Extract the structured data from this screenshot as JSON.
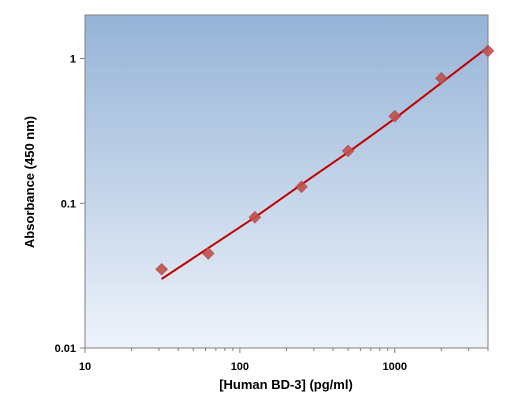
{
  "chart_data": {
    "type": "scatter",
    "title": "",
    "xlabel": "[Human BD-3] (pg/ml)",
    "ylabel": "Absorbance (450 nm)",
    "x_scale": "log",
    "y_scale": "log",
    "xlim": [
      10,
      4000
    ],
    "ylim": [
      0.01,
      2
    ],
    "x_ticks": [
      10,
      100,
      1000
    ],
    "x_tick_labels": [
      "10",
      "100",
      "1000"
    ],
    "y_ticks": [
      0.01,
      0.1,
      1
    ],
    "y_tick_labels": [
      "0.01",
      "0.1",
      "1"
    ],
    "grid": false,
    "legend": "none",
    "series": [
      {
        "kind": "points",
        "marker": "diamond",
        "color": "#c0504d",
        "points": [
          {
            "x": 31.25,
            "y": 0.035
          },
          {
            "x": 62.5,
            "y": 0.045
          },
          {
            "x": 125,
            "y": 0.08
          },
          {
            "x": 250,
            "y": 0.13
          },
          {
            "x": 500,
            "y": 0.23
          },
          {
            "x": 1000,
            "y": 0.4
          },
          {
            "x": 2000,
            "y": 0.73
          },
          {
            "x": 4000,
            "y": 1.13
          }
        ]
      },
      {
        "kind": "fit-line",
        "color": "#c00000",
        "points": [
          {
            "x": 31.25,
            "y": 0.03
          },
          {
            "x": 62.5,
            "y": 0.049
          },
          {
            "x": 125,
            "y": 0.08
          },
          {
            "x": 250,
            "y": 0.135
          },
          {
            "x": 500,
            "y": 0.225
          },
          {
            "x": 1000,
            "y": 0.385
          },
          {
            "x": 2000,
            "y": 0.68
          },
          {
            "x": 4000,
            "y": 1.2
          }
        ]
      }
    ],
    "colors": {
      "plot_bg_top": "#95b3d7",
      "plot_bg_bottom": "#eef3fa",
      "axis": "#7f7f7f"
    }
  }
}
